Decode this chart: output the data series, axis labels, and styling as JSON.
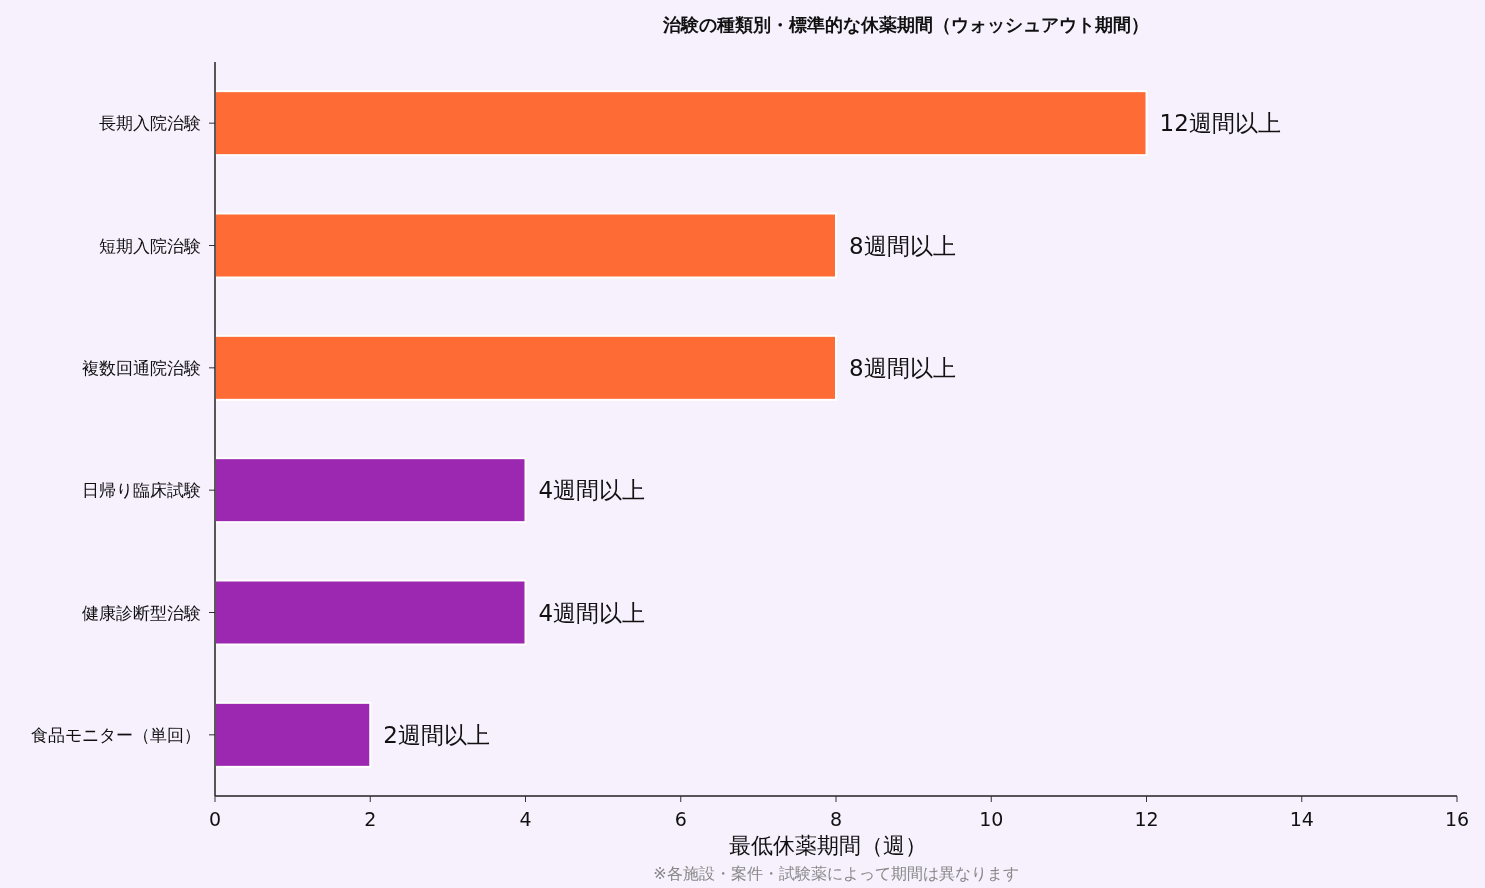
{
  "chart_data": {
    "type": "bar",
    "orientation": "horizontal",
    "title": "治験の種類別・標準的な休薬期間（ウォッシュアウト期間）",
    "xlabel": "最低休薬期間（週）",
    "annotations": [
      "※各施設・案件・試験薬によって期間は異なります"
    ],
    "categories": [
      "長期入院治験",
      "短期入院治験",
      "複数回通院治験",
      "日帰り臨床試験",
      "健康診断型治験",
      "食品モニター（単回）"
    ],
    "values": [
      12,
      8,
      8,
      4,
      4,
      2
    ],
    "colors": [
      "#ff6b35",
      "#ff6b35",
      "#ff6b35",
      "#9c27b0",
      "#9c27b0",
      "#9c27b0"
    ],
    "value_labels": [
      "12週間以上",
      "8週間以上",
      "8週間以上",
      "4週間以上",
      "4週間以上",
      "2週間以上"
    ],
    "xlim": [
      0,
      16
    ],
    "xticks": [
      0,
      2,
      4,
      6,
      8,
      10,
      12,
      14,
      16
    ],
    "grid": false
  }
}
